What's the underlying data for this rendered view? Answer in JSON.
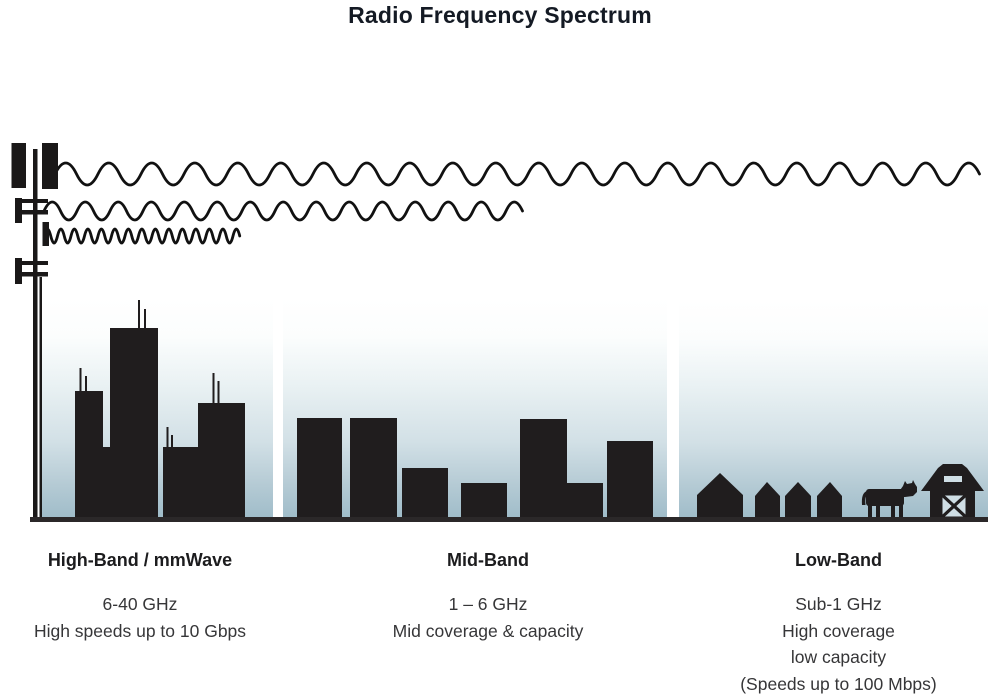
{
  "title": "Radio Frequency Spectrum",
  "bands": [
    {
      "name": "High-Band / mmWave",
      "details": [
        "6-40 GHz",
        "High speeds up to 10 Gbps"
      ],
      "scene_icon": "city-skyline",
      "wave_icon": "short-wavelength-wave"
    },
    {
      "name": "Mid-Band",
      "details": [
        "1 – 6 GHz",
        "Mid coverage & capacity"
      ],
      "scene_icon": "mid-rise-buildings",
      "wave_icon": "medium-wavelength-wave"
    },
    {
      "name": "Low-Band",
      "details": [
        "Sub-1 GHz",
        "High coverage",
        "low capacity",
        "(Speeds up to 100 Mbps)"
      ],
      "scene_icon": "farm-houses-cow-barn",
      "wave_icon": "long-wavelength-wave"
    }
  ],
  "icons": {
    "tower": "cell-tower-icon",
    "wave_top": "long-wavelength-wave",
    "wave_middle": "medium-wavelength-wave",
    "wave_bottom": "short-wavelength-wave"
  },
  "colors": {
    "silhouette": "#201d1e",
    "wave_stroke": "#111111",
    "sky_gradient_top": "#ffffff",
    "sky_gradient_bottom": "#9fbcc9",
    "ground_line": "#2b2829",
    "title_text": "#141a24",
    "heading_text": "#1c1c1e",
    "body_text": "#363638"
  }
}
